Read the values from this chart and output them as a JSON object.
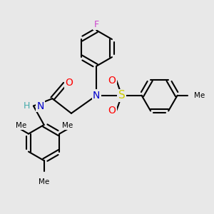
{
  "background_color": "#e8e8e8",
  "bond_color": "#000000",
  "N_color": "#0000cc",
  "O_color": "#ff0000",
  "S_color": "#cccc00",
  "F_color": "#cc44cc",
  "H_color": "#44aaaa",
  "line_width": 1.5,
  "figsize": [
    3.0,
    3.0
  ],
  "dpi": 100,
  "xlim": [
    0,
    10
  ],
  "ylim": [
    0,
    10
  ]
}
